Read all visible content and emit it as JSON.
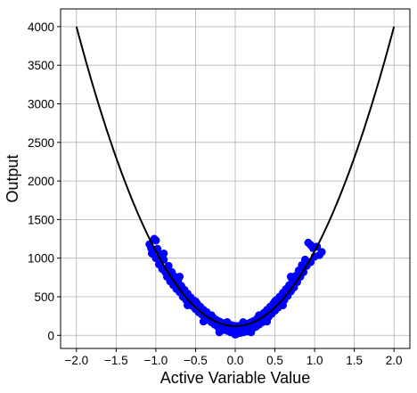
{
  "chart_data": {
    "type": "scatter",
    "title": "",
    "xlabel": "Active Variable Value",
    "ylabel": "Output",
    "xlim": [
      -2.2,
      2.2
    ],
    "ylim": [
      -170,
      4230
    ],
    "xticks": [
      -2.0,
      -1.5,
      -1.0,
      -0.5,
      0.0,
      0.5,
      1.0,
      1.5,
      2.0
    ],
    "xtick_labels": [
      "−2.0",
      "−1.5",
      "−1.0",
      "−0.5",
      "0.0",
      "0.5",
      "1.0",
      "1.5",
      "2.0"
    ],
    "yticks": [
      0,
      500,
      1000,
      1500,
      2000,
      2500,
      3000,
      3500,
      4000
    ],
    "ytick_labels": [
      "0",
      "500",
      "1000",
      "1500",
      "2000",
      "2500",
      "3000",
      "3500",
      "4000"
    ],
    "grid": true,
    "series": [
      {
        "kind": "scatter",
        "color": "#0000ff",
        "points": [
          [
            -1.08,
            1180
          ],
          [
            -1.05,
            1060
          ],
          [
            -1.02,
            1250
          ],
          [
            -1.0,
            1000
          ],
          [
            -0.98,
            1120
          ],
          [
            -0.96,
            920
          ],
          [
            -0.94,
            1050
          ],
          [
            -0.92,
            860
          ],
          [
            -0.9,
            980
          ],
          [
            -0.88,
            820
          ],
          [
            -0.86,
            760
          ],
          [
            -0.84,
            900
          ],
          [
            -0.82,
            700
          ],
          [
            -0.8,
            820
          ],
          [
            -0.78,
            650
          ],
          [
            -0.76,
            760
          ],
          [
            -0.74,
            600
          ],
          [
            -0.72,
            700
          ],
          [
            -0.7,
            560
          ],
          [
            -0.68,
            640
          ],
          [
            -0.66,
            500
          ],
          [
            -0.64,
            590
          ],
          [
            -0.62,
            460
          ],
          [
            -0.6,
            540
          ],
          [
            -0.58,
            420
          ],
          [
            -0.56,
            490
          ],
          [
            -0.54,
            380
          ],
          [
            -0.52,
            450
          ],
          [
            -0.5,
            340
          ],
          [
            -0.48,
            410
          ],
          [
            -0.46,
            300
          ],
          [
            -0.44,
            370
          ],
          [
            -0.42,
            270
          ],
          [
            -0.4,
            330
          ],
          [
            -0.38,
            230
          ],
          [
            -0.36,
            300
          ],
          [
            -0.34,
            200
          ],
          [
            -0.32,
            260
          ],
          [
            -0.3,
            170
          ],
          [
            -0.28,
            230
          ],
          [
            -0.26,
            140
          ],
          [
            -0.24,
            200
          ],
          [
            -0.22,
            110
          ],
          [
            -0.2,
            180
          ],
          [
            -0.18,
            90
          ],
          [
            -0.16,
            160
          ],
          [
            -0.14,
            70
          ],
          [
            -0.12,
            150
          ],
          [
            -0.1,
            60
          ],
          [
            -0.08,
            140
          ],
          [
            -0.06,
            40
          ],
          [
            -0.04,
            130
          ],
          [
            -0.02,
            30
          ],
          [
            0.0,
            120
          ],
          [
            0.02,
            20
          ],
          [
            0.04,
            120
          ],
          [
            0.06,
            30
          ],
          [
            0.08,
            130
          ],
          [
            0.1,
            40
          ],
          [
            0.12,
            140
          ],
          [
            0.14,
            50
          ],
          [
            0.16,
            150
          ],
          [
            0.18,
            70
          ],
          [
            0.2,
            170
          ],
          [
            0.22,
            90
          ],
          [
            0.24,
            190
          ],
          [
            0.26,
            110
          ],
          [
            0.28,
            220
          ],
          [
            0.3,
            140
          ],
          [
            0.32,
            250
          ],
          [
            0.34,
            170
          ],
          [
            0.36,
            290
          ],
          [
            0.38,
            200
          ],
          [
            0.4,
            330
          ],
          [
            0.42,
            240
          ],
          [
            0.44,
            370
          ],
          [
            0.46,
            280
          ],
          [
            0.48,
            410
          ],
          [
            0.5,
            320
          ],
          [
            0.52,
            460
          ],
          [
            0.54,
            360
          ],
          [
            0.56,
            500
          ],
          [
            0.58,
            410
          ],
          [
            0.6,
            550
          ],
          [
            0.62,
            460
          ],
          [
            0.64,
            600
          ],
          [
            0.66,
            510
          ],
          [
            0.68,
            650
          ],
          [
            0.7,
            570
          ],
          [
            0.72,
            710
          ],
          [
            0.74,
            620
          ],
          [
            0.76,
            770
          ],
          [
            0.78,
            690
          ],
          [
            0.8,
            840
          ],
          [
            0.82,
            760
          ],
          [
            0.84,
            910
          ],
          [
            0.86,
            820
          ],
          [
            0.88,
            980
          ],
          [
            0.9,
            900
          ],
          [
            0.92,
            1200
          ],
          [
            0.95,
            950
          ],
          [
            0.98,
            1130
          ],
          [
            1.0,
            1020
          ],
          [
            1.03,
            1150
          ],
          [
            1.06,
            1040
          ],
          [
            1.09,
            1080
          ],
          [
            -1.06,
            1130
          ],
          [
            -1.0,
            1230
          ],
          [
            0.95,
            1170
          ],
          [
            -0.9,
            1060
          ],
          [
            -0.7,
            760
          ],
          [
            -0.5,
            440
          ],
          [
            -0.3,
            260
          ],
          [
            -0.1,
            170
          ],
          [
            0.1,
            170
          ],
          [
            0.3,
            260
          ],
          [
            0.5,
            440
          ],
          [
            0.7,
            760
          ],
          [
            -0.6,
            390
          ],
          [
            0.6,
            390
          ],
          [
            -0.4,
            180
          ],
          [
            0.4,
            180
          ],
          [
            -0.2,
            40
          ],
          [
            0.2,
            40
          ],
          [
            0.0,
            10
          ]
        ]
      },
      {
        "kind": "line",
        "color": "#000000",
        "formula": "120 + 970*x^2",
        "x_range": [
          -2.0,
          2.0
        ],
        "endpoints": [
          [
            -2.0,
            4000
          ],
          [
            0.0,
            120
          ],
          [
            2.0,
            4000
          ]
        ]
      }
    ]
  }
}
